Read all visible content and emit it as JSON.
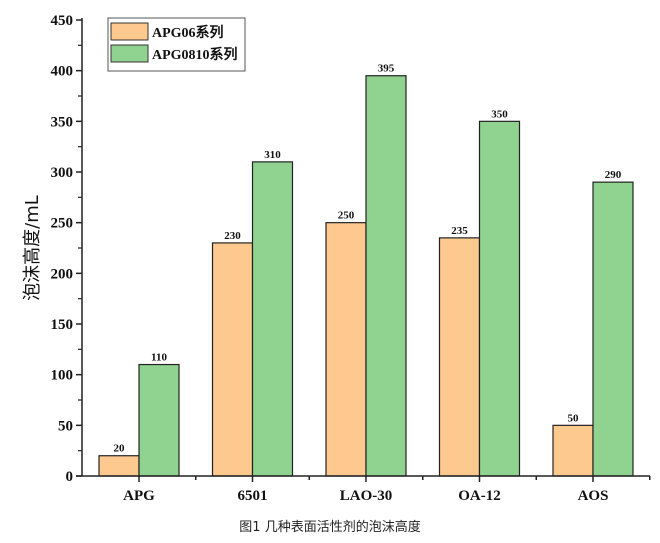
{
  "chart_data": {
    "type": "bar",
    "title": "",
    "caption": "图1 几种表面活性剂的泡沫高度",
    "xlabel": "",
    "ylabel": "泡沫高度/mL",
    "ylim": [
      0,
      450
    ],
    "yticks": [
      0,
      50,
      100,
      150,
      200,
      250,
      300,
      350,
      400,
      450
    ],
    "categories": [
      "APG",
      "6501",
      "LAO-30",
      "OA-12",
      "AOS"
    ],
    "series": [
      {
        "name": "APG06系列",
        "color": "#FDC98F",
        "values": [
          20,
          230,
          250,
          235,
          50
        ]
      },
      {
        "name": "APG0810系列",
        "color": "#90D290",
        "values": [
          110,
          310,
          395,
          350,
          290
        ]
      }
    ],
    "grid": false,
    "legend": "top-left"
  }
}
